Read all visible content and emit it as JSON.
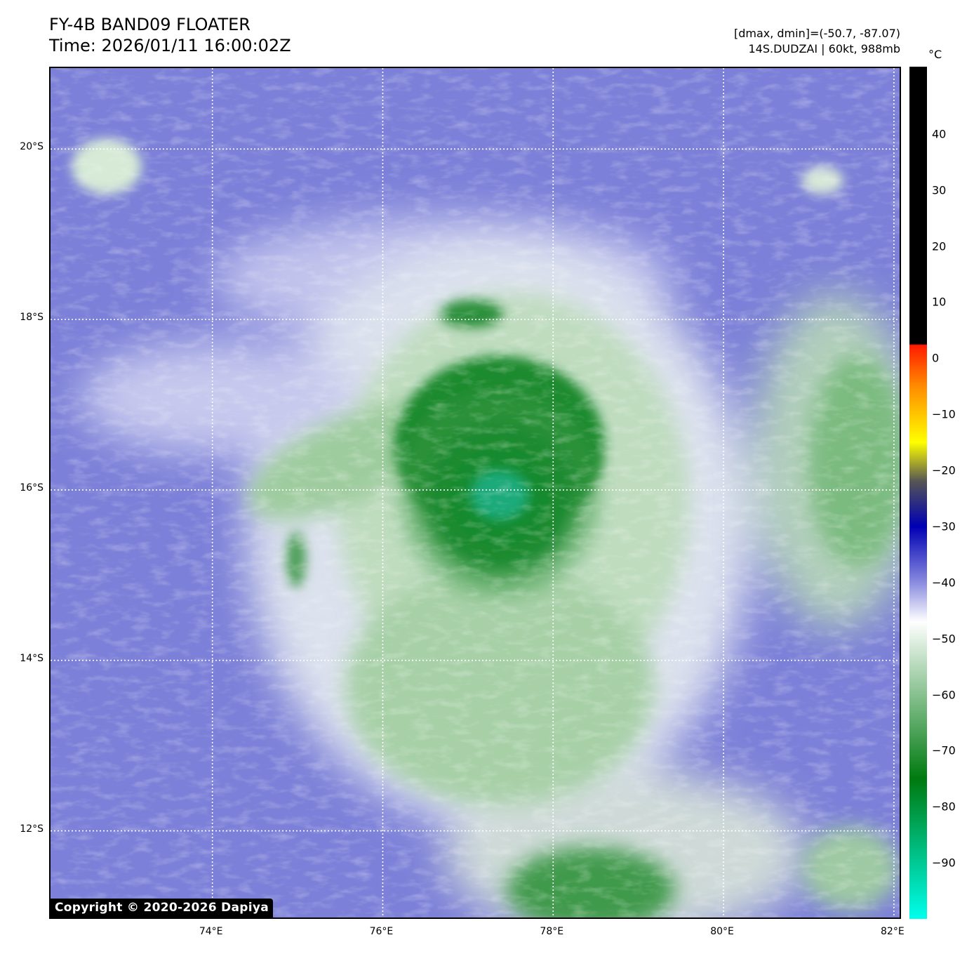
{
  "header": {
    "title": "FY-4B BAND09 FLOATER",
    "time": "Time: 2026/01/11 16:00:02Z",
    "range": "[dmax, dmin]=(-50.7, -87.07)",
    "storm": "14S.DUDZAI | 60kt, 988mb"
  },
  "map": {
    "lat_labels": [
      "12°S",
      "14°S",
      "16°S",
      "18°S",
      "20°S"
    ],
    "lat_values": [
      -12,
      -14,
      -16,
      -18,
      -20
    ],
    "lon_labels": [
      "74°E",
      "76°E",
      "78°E",
      "80°E",
      "82°E"
    ],
    "lon_values": [
      74,
      76,
      78,
      80,
      82
    ],
    "lon_range": [
      72.1,
      82.1
    ],
    "lat_range": [
      -10.95,
      -20.95
    ],
    "storm_center": {
      "lon": 77.25,
      "lat": -15.95
    },
    "copyright": "Copyright © 2020-2026 Dapiya"
  },
  "colorbar": {
    "unit": "°C",
    "range": [
      -100,
      52
    ],
    "tick_labels": [
      "40",
      "30",
      "20",
      "10",
      "0",
      "−10",
      "−20",
      "−30",
      "−40",
      "−50",
      "−60",
      "−70",
      "−80",
      "−90"
    ],
    "tick_values": [
      40,
      30,
      20,
      10,
      0,
      -10,
      -20,
      -30,
      -40,
      -50,
      -60,
      -70,
      -80,
      -90
    ],
    "colors": {
      "warm": "#000000",
      "red": "#ff1a00",
      "orange": "#ff8c00",
      "yellow": "#ffff00",
      "gray": "#555555",
      "blue": "#0000b4",
      "lavender": "#8a8ce0",
      "white": "#ffffff",
      "green": "#007a10",
      "cyan": "#00ffee"
    }
  }
}
